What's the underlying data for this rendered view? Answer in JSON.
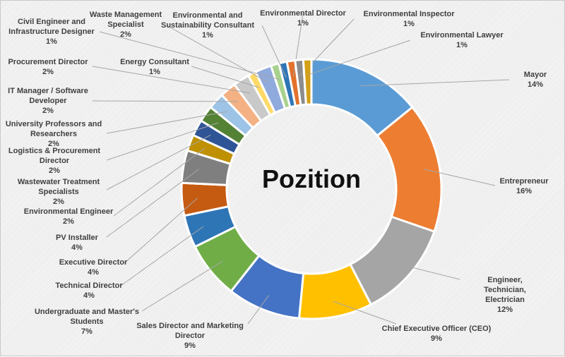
{
  "chart_data": {
    "type": "pie",
    "variant": "donut",
    "title": "Pozition",
    "legend": "none",
    "slices": [
      {
        "name": "Mayor",
        "pct": "14%",
        "value": 14,
        "color": "#5b9bd5"
      },
      {
        "name": "Entrepreneur",
        "pct": "16%",
        "value": 16,
        "color": "#ed7d31"
      },
      {
        "name": "Engineer, Technician,\nElectrician",
        "pct": "12%",
        "value": 12,
        "color": "#a5a5a5"
      },
      {
        "name": "Chief Executive Officer (CEO)",
        "pct": "9%",
        "value": 9,
        "color": "#ffc000"
      },
      {
        "name": "Sales Director and Marketing\nDirector",
        "pct": "9%",
        "value": 9,
        "color": "#4472c4"
      },
      {
        "name": "Undergraduate and Master's\nStudents",
        "pct": "7%",
        "value": 7,
        "color": "#70ad47"
      },
      {
        "name": "Technical Director",
        "pct": "4%",
        "value": 4,
        "color": "#2e75b6"
      },
      {
        "name": "Executive Director",
        "pct": "4%",
        "value": 4,
        "color": "#c55a11"
      },
      {
        "name": "PV Installer",
        "pct": "4%",
        "value": 4,
        "color": "#7f7f7f"
      },
      {
        "name": "Environmental Engineer",
        "pct": "2%",
        "value": 2,
        "color": "#bf9000"
      },
      {
        "name": "Wastewater Treatment\nSpecialists",
        "pct": "2%",
        "value": 2,
        "color": "#2f5597"
      },
      {
        "name": "Logistics & Procurement\nDirector",
        "pct": "2%",
        "value": 2,
        "color": "#548235"
      },
      {
        "name": "University Professors and\nResearchers",
        "pct": "2%",
        "value": 2,
        "color": "#9dc3e6"
      },
      {
        "name": "IT Manager / Software\nDeveloper",
        "pct": "2%",
        "value": 2,
        "color": "#f4b183"
      },
      {
        "name": "Procurement Director",
        "pct": "2%",
        "value": 2,
        "color": "#c9c9c9"
      },
      {
        "name": "Energy Consultant",
        "pct": "1%",
        "value": 1,
        "color": "#ffd966"
      },
      {
        "name": "Waste Management\nSpecialist",
        "pct": "2%",
        "value": 2,
        "color": "#8faadc"
      },
      {
        "name": "Civil Engineer and\nInfrastructure Designer",
        "pct": "1%",
        "value": 1,
        "color": "#a9d18e"
      },
      {
        "name": "Environmental and\nSustainability Consultant",
        "pct": "1%",
        "value": 1,
        "color": "#2e75b6"
      },
      {
        "name": "Environmental Director",
        "pct": "1%",
        "value": 1,
        "color": "#e2712b"
      },
      {
        "name": "Environmental Inspector",
        "pct": "1%",
        "value": 1,
        "color": "#8c8c8c"
      },
      {
        "name": "Environmental Lawyer",
        "pct": "1%",
        "value": 1,
        "color": "#d4a017"
      }
    ]
  }
}
